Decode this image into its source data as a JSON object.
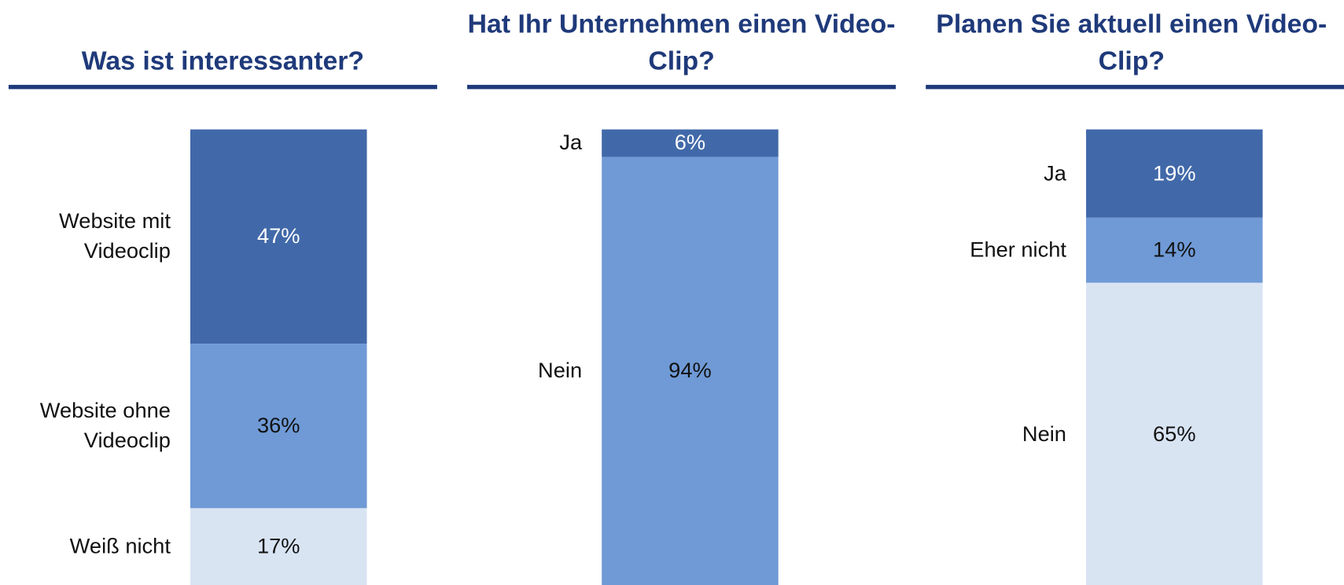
{
  "chart_data": [
    {
      "type": "stacked-bar",
      "title": "Was ist interessanter?",
      "categories": [
        "Website mit Videoclip",
        "Website ohne Videoclip",
        "Weiß nicht"
      ],
      "values": [
        47,
        36,
        17
      ],
      "value_labels": [
        "47%",
        "36%",
        "17%"
      ],
      "colors": [
        "#4169a9",
        "#6f9ad6",
        "#d9e4f3"
      ]
    },
    {
      "type": "stacked-bar",
      "title": "Hat Ihr Unternehmen einen Video-Clip?",
      "categories": [
        "Ja",
        "Nein"
      ],
      "values": [
        6,
        94
      ],
      "value_labels": [
        "6%",
        "94%"
      ],
      "colors": [
        "#4169a9",
        "#6f9ad6"
      ]
    },
    {
      "type": "stacked-bar",
      "title": "Planen Sie aktuell einen Video-Clip?",
      "categories": [
        "Ja",
        "Eher nicht",
        "Nein"
      ],
      "values": [
        19,
        14,
        65
      ],
      "value_labels": [
        "19%",
        "14%",
        "65%"
      ],
      "colors": [
        "#4169a9",
        "#6f9ad6",
        "#d9e4f3"
      ]
    }
  ]
}
